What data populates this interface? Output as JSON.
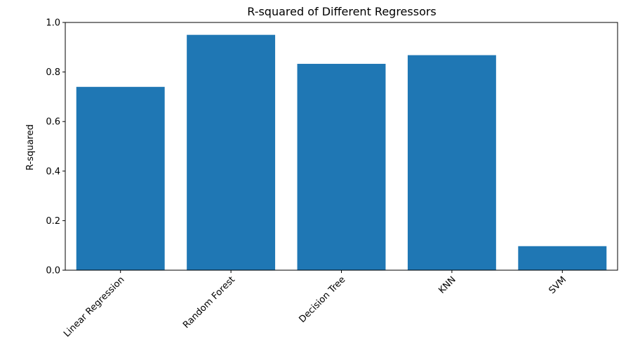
{
  "chart_data": {
    "type": "bar",
    "title": "R-squared of Different Regressors",
    "xlabel": "",
    "ylabel": "R-squared",
    "categories": [
      "Linear Regression",
      "Random Forest",
      "Decision Tree",
      "KNN",
      "SVM"
    ],
    "values": [
      0.74,
      0.95,
      0.833,
      0.868,
      0.097
    ],
    "ylim": [
      0,
      1.0
    ],
    "yticks": [
      "0.0",
      "0.2",
      "0.4",
      "0.6",
      "0.8",
      "1.0"
    ],
    "grid": false,
    "bar_color": "#1f77b4"
  }
}
